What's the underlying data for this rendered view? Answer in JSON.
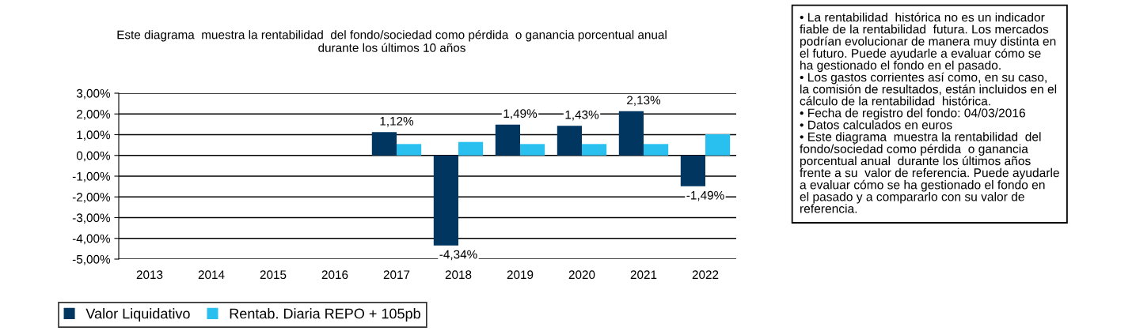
{
  "chart_data": {
    "type": "bar",
    "title": "Este diagrama  muestra la rentabilidad  del fondo/sociedad como pérdida  o ganancia porcentual anual\ndurante los últimos 10 años",
    "categories": [
      "2013",
      "2014",
      "2015",
      "2016",
      "2017",
      "2018",
      "2019",
      "2020",
      "2021",
      "2022"
    ],
    "series": [
      {
        "name": "Valor Liquidativo",
        "color": "#003660",
        "values": [
          null,
          null,
          null,
          null,
          1.12,
          -4.34,
          1.49,
          1.43,
          2.13,
          -1.49
        ],
        "value_labels": [
          null,
          null,
          null,
          null,
          "1,12%",
          "-4,34%",
          "1,49%",
          "1,43%",
          "2,13%",
          "-1,49%"
        ]
      },
      {
        "name": "Rentab. Diaria REPO + 105pb",
        "color": "#29c0ef",
        "values": [
          null,
          null,
          null,
          null,
          0.55,
          0.65,
          0.55,
          0.55,
          0.55,
          1.02
        ]
      }
    ],
    "ylim": [
      -5,
      3
    ],
    "yticks": [
      {
        "value": -5,
        "label": "-5,00%"
      },
      {
        "value": -4,
        "label": "-4,00%"
      },
      {
        "value": -3,
        "label": "-3,00%"
      },
      {
        "value": -2,
        "label": "-2,00%"
      },
      {
        "value": -1,
        "label": "-1,00%"
      },
      {
        "value": 0,
        "label": "0,00%"
      },
      {
        "value": 1,
        "label": "1,00%"
      },
      {
        "value": 2,
        "label": "2,00%"
      },
      {
        "value": 3,
        "label": "3,00%"
      }
    ],
    "grid": "y",
    "legend": "bottom",
    "annotations": [
      "• La rentabilidad  histórica no es un indicador\nfiable de la rentabilidad  futura. Los mercados\npodrían evolucionar de manera muy distinta en\nel futuro. Puede ayudarle a evaluar cómo se\nha gestionado el fondo en el pasado.\n• Los gastos corrientes así como, en su caso,\nla comisión de resultados, están incluidos en el\ncálculo de la rentabilidad  histórica.\n• Fecha de registro del fondo: 04/03/2016\n• Datos calculados en euros\n• Este diagrama  muestra la rentabilidad  del\nfondo/sociedad como pérdida  o ganancia\nporcentual anual  durante los últimos años\nfrente a su  valor de referencia. Puede ayudarle\na evaluar cómo se ha gestionado el fondo en\nel pasado y a compararlo con su valor de\nreferencia."
    ]
  }
}
